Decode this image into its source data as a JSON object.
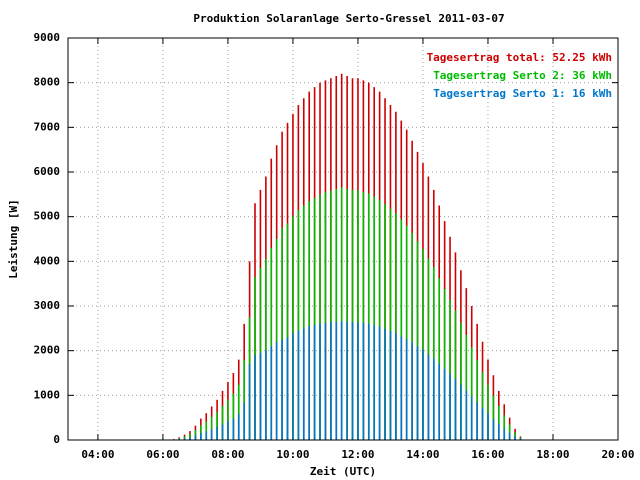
{
  "chart_data": {
    "type": "impulse",
    "title": "Produktion Solaranlage Serto-Gressel 2011-03-07",
    "xlabel": "Zeit (UTC)",
    "ylabel": "Leistung [W]",
    "xlim": [
      3.08,
      20
    ],
    "ylim": [
      0,
      9000
    ],
    "xticks": [
      {
        "value": 4,
        "label": "04:00"
      },
      {
        "value": 6,
        "label": "06:00"
      },
      {
        "value": 8,
        "label": "08:00"
      },
      {
        "value": 10,
        "label": "10:00"
      },
      {
        "value": 12,
        "label": "12:00"
      },
      {
        "value": 14,
        "label": "14:00"
      },
      {
        "value": 16,
        "label": "16:00"
      },
      {
        "value": 18,
        "label": "18:00"
      },
      {
        "value": 20,
        "label": "20:00"
      }
    ],
    "yticks": [
      0,
      1000,
      2000,
      3000,
      4000,
      5000,
      6000,
      7000,
      8000,
      9000
    ],
    "grid": true,
    "legend": "top-right",
    "x": [
      6.333,
      6.5,
      6.667,
      6.833,
      7,
      7.167,
      7.333,
      7.5,
      7.667,
      7.833,
      8,
      8.167,
      8.333,
      8.5,
      8.667,
      8.833,
      9,
      9.167,
      9.333,
      9.5,
      9.667,
      9.833,
      10,
      10.167,
      10.333,
      10.5,
      10.667,
      10.833,
      11,
      11.167,
      11.333,
      11.5,
      11.667,
      11.833,
      12,
      12.167,
      12.333,
      12.5,
      12.667,
      12.833,
      13,
      13.167,
      13.333,
      13.5,
      13.667,
      13.833,
      14,
      14.167,
      14.333,
      14.5,
      14.667,
      14.833,
      15,
      15.167,
      15.333,
      15.5,
      15.667,
      15.833,
      16,
      16.167,
      16.333,
      16.5,
      16.667,
      16.833,
      17,
      17.167
    ],
    "series": [
      {
        "name": "Tagesertrag total: 52.25 kWh",
        "color": "#cc0000",
        "values": [
          20,
          60,
          120,
          200,
          320,
          480,
          600,
          750,
          900,
          1100,
          1300,
          1500,
          1800,
          2600,
          4000,
          5300,
          5600,
          5900,
          6300,
          6600,
          6900,
          7100,
          7300,
          7500,
          7650,
          7800,
          7900,
          8000,
          8050,
          8100,
          8150,
          8200,
          8150,
          8100,
          8100,
          8050,
          8000,
          7900,
          7800,
          7650,
          7500,
          7350,
          7150,
          6950,
          6700,
          6450,
          6200,
          5900,
          5600,
          5250,
          4900,
          4550,
          4200,
          3800,
          3400,
          3000,
          2600,
          2200,
          1800,
          1450,
          1100,
          800,
          500,
          250,
          80,
          10
        ]
      },
      {
        "name": "Tagesertrag Serto 2: 36 kWh",
        "color": "#00bb00",
        "values": [
          10,
          40,
          80,
          140,
          220,
          330,
          410,
          520,
          620,
          760,
          900,
          1040,
          1240,
          1790,
          2750,
          3650,
          3850,
          4050,
          4300,
          4500,
          4750,
          4850,
          5000,
          5150,
          5250,
          5350,
          5420,
          5500,
          5550,
          5580,
          5620,
          5650,
          5620,
          5600,
          5590,
          5550,
          5520,
          5450,
          5380,
          5280,
          5180,
          5080,
          4940,
          4800,
          4630,
          4450,
          4280,
          4070,
          3870,
          3620,
          3380,
          3140,
          2900,
          2620,
          2350,
          2070,
          1790,
          1520,
          1240,
          1000,
          760,
          550,
          350,
          170,
          55,
          5
        ]
      },
      {
        "name": "Tagesertrag Serto 1: 16 kWh",
        "color": "#0077cc",
        "values": [
          10,
          20,
          40,
          60,
          100,
          150,
          190,
          240,
          290,
          350,
          420,
          480,
          580,
          830,
          1700,
          1900,
          1950,
          2000,
          2100,
          2200,
          2250,
          2300,
          2400,
          2450,
          2500,
          2550,
          2580,
          2600,
          2620,
          2640,
          2650,
          2660,
          2650,
          2640,
          2630,
          2620,
          2600,
          2570,
          2540,
          2490,
          2440,
          2390,
          2320,
          2260,
          2180,
          2100,
          2020,
          1920,
          1820,
          1710,
          1590,
          1480,
          1370,
          1240,
          1110,
          980,
          850,
          720,
          590,
          470,
          360,
          260,
          160,
          80,
          30,
          5
        ]
      }
    ]
  }
}
